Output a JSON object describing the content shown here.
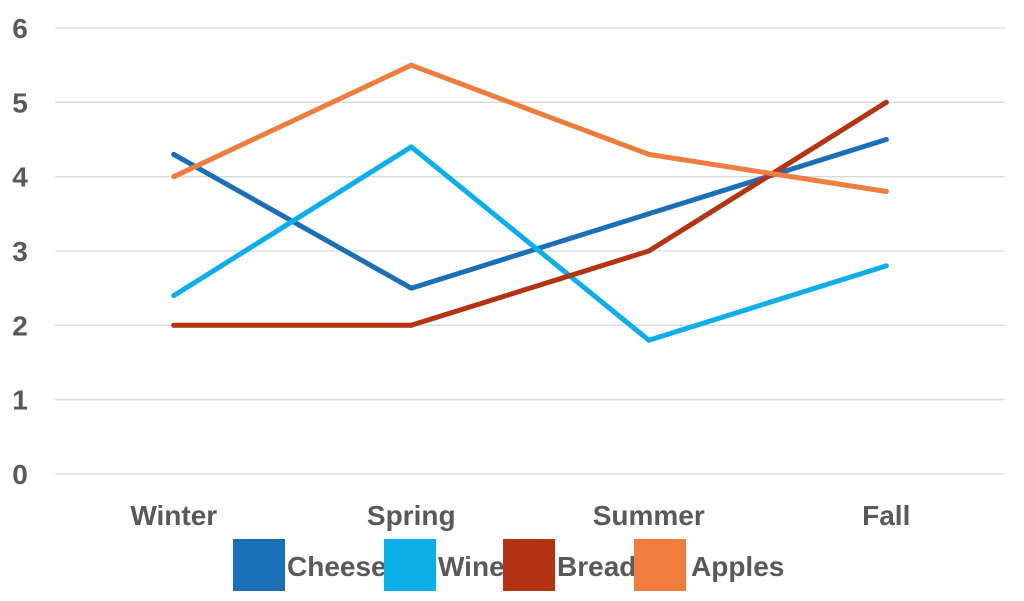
{
  "chart_data": {
    "type": "line",
    "categories": [
      "Winter",
      "Spring",
      "Summer",
      "Fall"
    ],
    "series": [
      {
        "name": "Cheese",
        "values": [
          4.3,
          2.5,
          3.5,
          4.5
        ],
        "color": "#1a6fb7"
      },
      {
        "name": "Wine",
        "values": [
          2.4,
          4.4,
          1.8,
          2.8
        ],
        "color": "#0aaee9"
      },
      {
        "name": "Bread",
        "values": [
          2.0,
          2.0,
          3.0,
          5.0
        ],
        "color": "#b33312"
      },
      {
        "name": "Apples",
        "values": [
          4.0,
          5.5,
          4.3,
          3.8
        ],
        "color": "#ef7d3d"
      }
    ],
    "ylim": [
      0,
      6
    ],
    "yticks": [
      "0",
      "1",
      "2",
      "3",
      "4",
      "5",
      "6"
    ],
    "grid": true,
    "legend_position": "bottom",
    "gridline_color": "#d9d9d9",
    "axis_label_color": "#595959"
  }
}
